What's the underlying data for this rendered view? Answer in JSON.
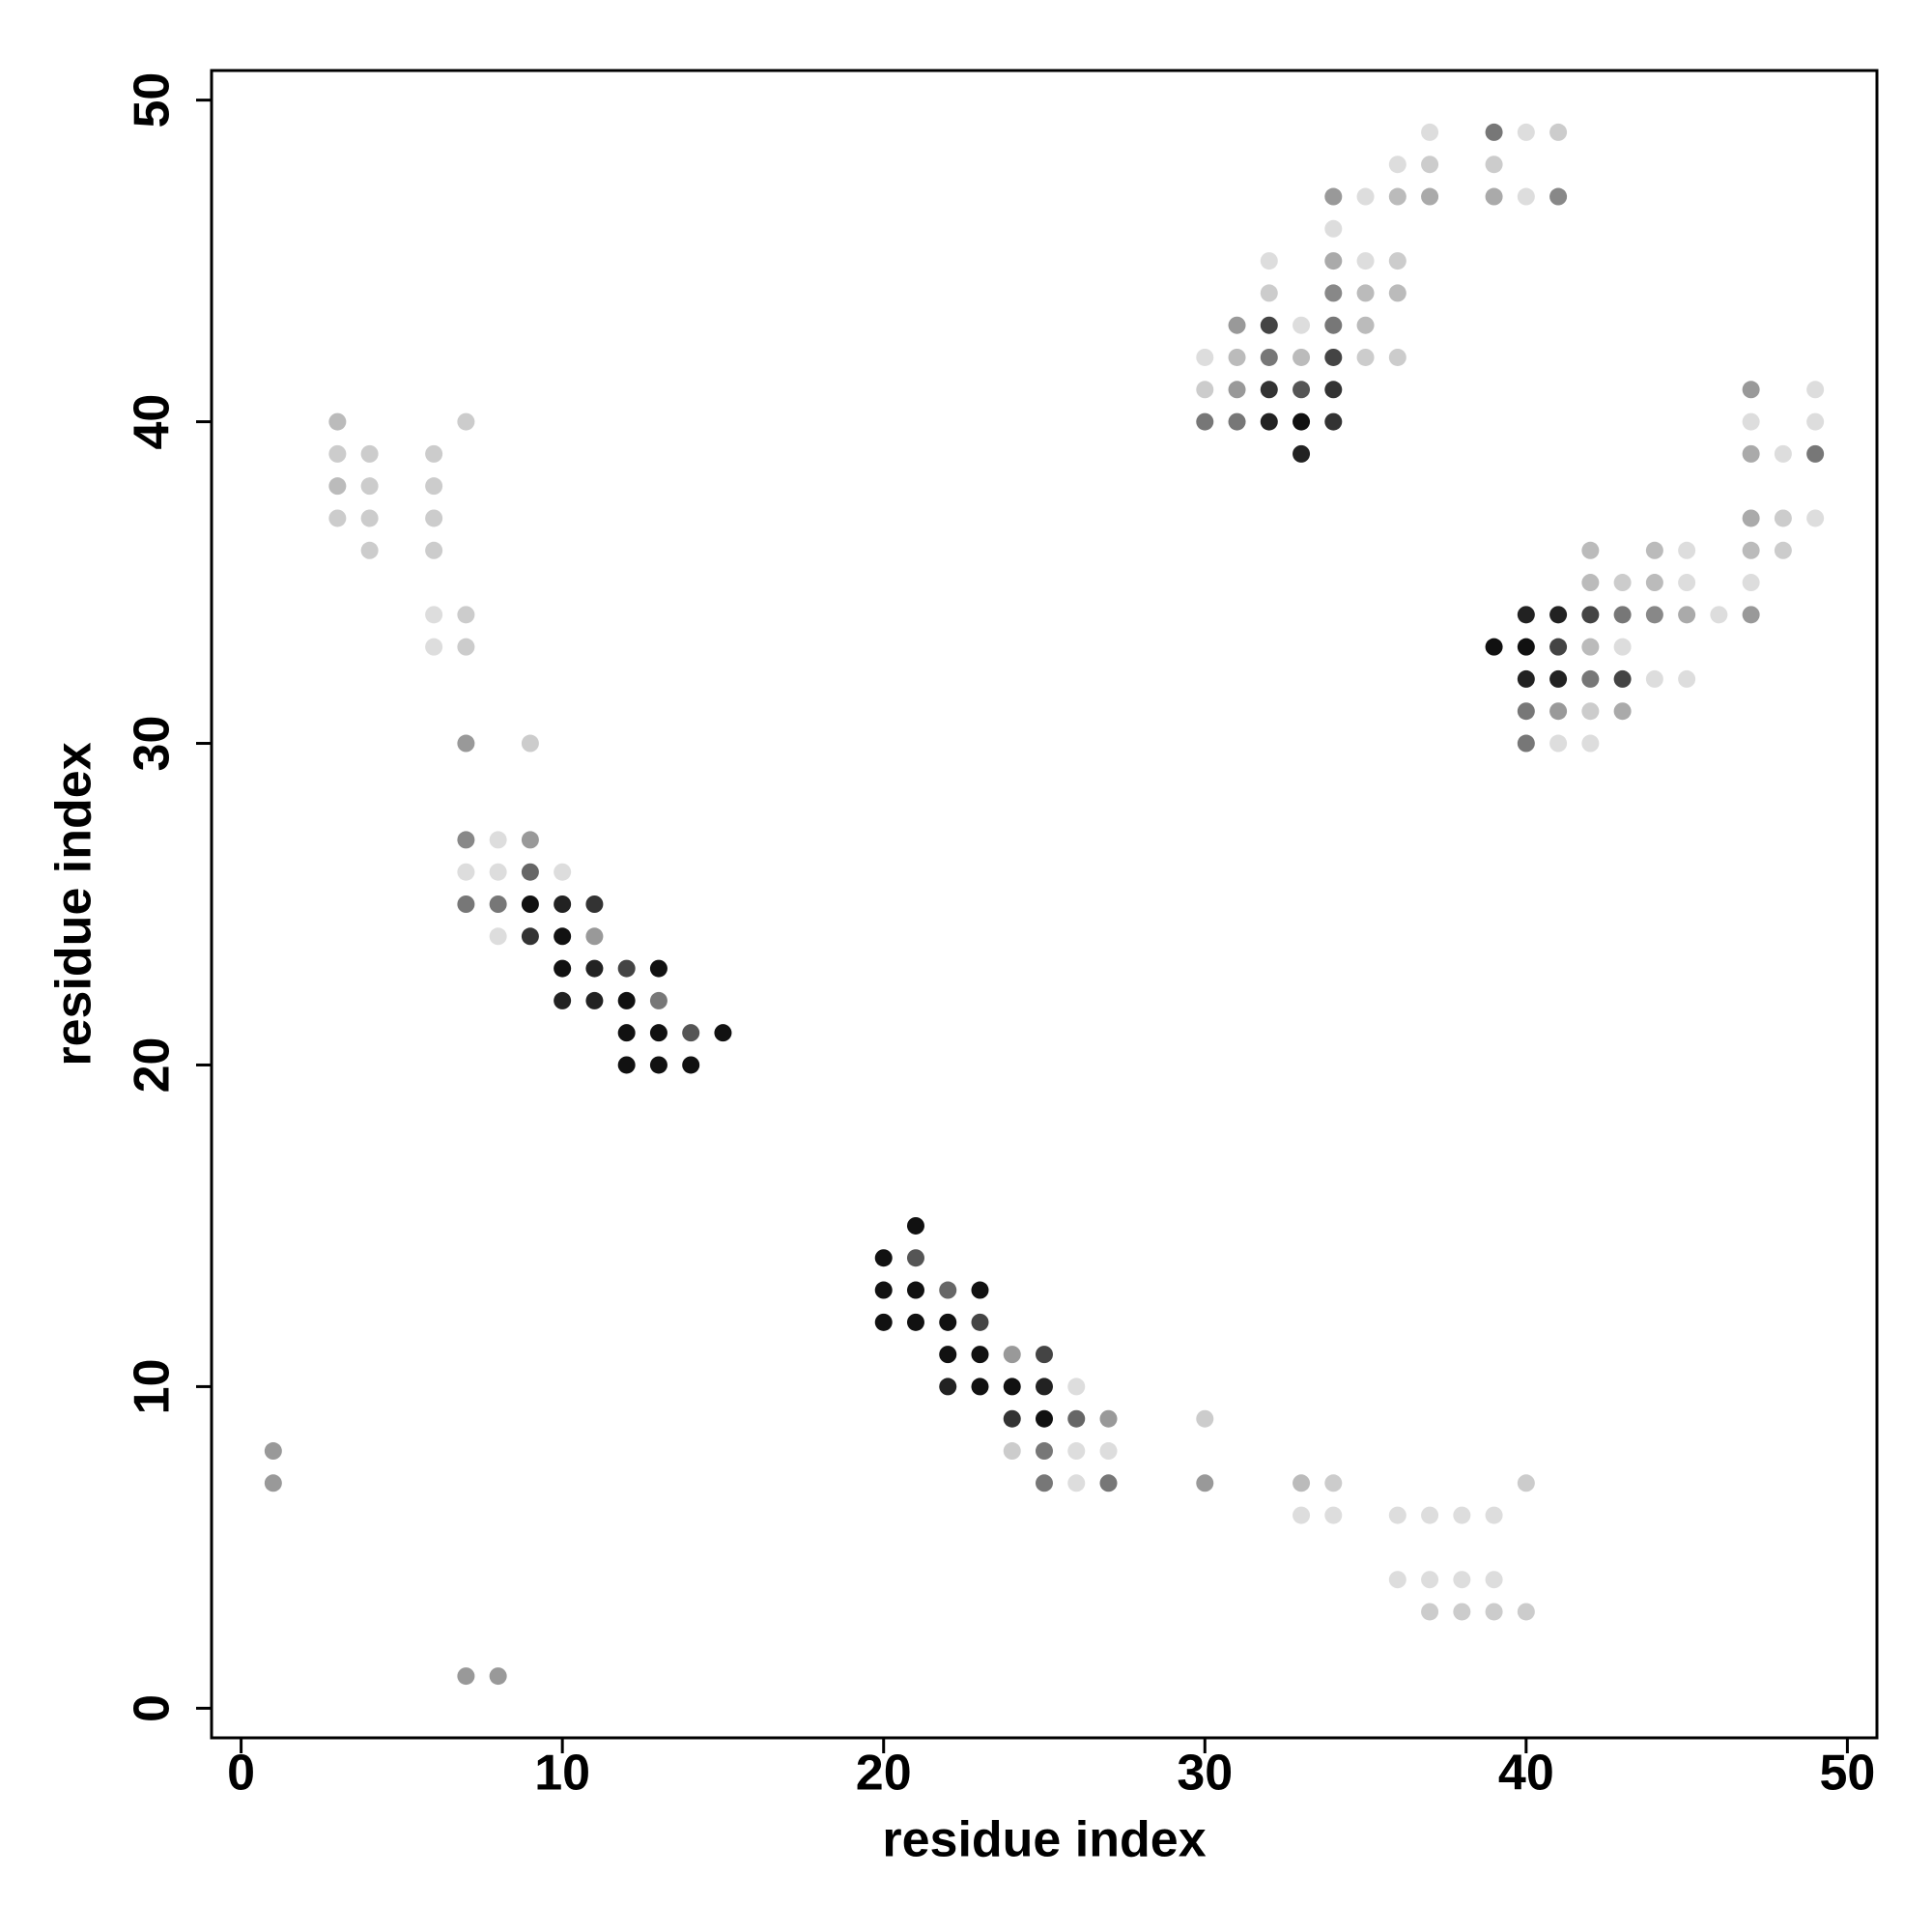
{
  "chart_data": {
    "type": "scatter",
    "x_label": "residue index",
    "y_label": "residue index",
    "xlim": [
      -0.92,
      50.92
    ],
    "ylim": [
      -0.92,
      50.92
    ],
    "xticks": [
      0,
      10,
      20,
      30,
      40,
      50
    ],
    "yticks": [
      0,
      10,
      20,
      30,
      40,
      50
    ],
    "x": [
      1,
      1,
      3,
      3,
      3,
      3,
      4,
      4,
      4,
      4,
      6,
      6,
      6,
      6,
      6,
      6,
      7,
      7,
      7,
      7,
      7,
      7,
      7,
      7,
      8,
      8,
      8,
      8,
      8,
      9,
      9,
      9,
      9,
      9,
      10,
      10,
      10,
      10,
      10,
      11,
      11,
      11,
      11,
      12,
      12,
      12,
      12,
      13,
      13,
      13,
      13,
      14,
      14,
      15,
      20,
      20,
      20,
      21,
      21,
      21,
      21,
      22,
      22,
      22,
      22,
      23,
      23,
      23,
      23,
      24,
      24,
      24,
      24,
      25,
      25,
      25,
      25,
      25,
      26,
      26,
      26,
      26,
      27,
      27,
      27,
      30,
      30,
      30,
      30,
      30,
      31,
      31,
      31,
      31,
      32,
      32,
      32,
      32,
      32,
      32,
      33,
      33,
      33,
      33,
      33,
      33,
      33,
      34,
      34,
      34,
      34,
      34,
      34,
      34,
      34,
      34,
      34,
      35,
      35,
      35,
      35,
      35,
      36,
      36,
      36,
      36,
      36,
      36,
      36,
      37,
      37,
      37,
      37,
      37,
      37,
      38,
      38,
      38,
      39,
      39,
      39,
      39,
      39,
      39,
      39,
      40,
      40,
      40,
      40,
      40,
      40,
      40,
      40,
      40,
      41,
      41,
      41,
      41,
      41,
      41,
      41,
      42,
      42,
      42,
      42,
      42,
      42,
      42,
      43,
      43,
      43,
      43,
      43,
      44,
      44,
      44,
      44,
      45,
      45,
      45,
      45,
      46,
      47,
      47,
      47,
      47,
      47,
      47,
      47,
      48,
      48,
      48,
      49,
      49,
      49,
      49
    ],
    "y": [
      8,
      7,
      40,
      39,
      38,
      37,
      39,
      38,
      37,
      36,
      39,
      38,
      37,
      36,
      34,
      33,
      40,
      34,
      33,
      30,
      27,
      26,
      25,
      1,
      27,
      26,
      25,
      24,
      1,
      30,
      27,
      26,
      25,
      24,
      26,
      25,
      24,
      23,
      22,
      25,
      24,
      23,
      22,
      23,
      22,
      21,
      20,
      23,
      22,
      21,
      20,
      21,
      20,
      21,
      14,
      13,
      12,
      15,
      14,
      13,
      12,
      13,
      12,
      11,
      10,
      13,
      12,
      11,
      10,
      11,
      10,
      9,
      8,
      11,
      10,
      9,
      8,
      7,
      10,
      9,
      8,
      7,
      9,
      8,
      7,
      42,
      41,
      40,
      9,
      7,
      43,
      42,
      41,
      40,
      45,
      44,
      43,
      42,
      41,
      40,
      43,
      42,
      41,
      40,
      39,
      7,
      6,
      47,
      46,
      45,
      44,
      43,
      42,
      41,
      40,
      7,
      6,
      47,
      45,
      44,
      43,
      42,
      48,
      47,
      45,
      44,
      42,
      6,
      4,
      49,
      48,
      47,
      6,
      4,
      3,
      6,
      4,
      3,
      49,
      48,
      47,
      33,
      6,
      4,
      3,
      49,
      47,
      34,
      33,
      32,
      31,
      30,
      7,
      3,
      49,
      47,
      34,
      33,
      32,
      31,
      30,
      36,
      35,
      34,
      33,
      32,
      31,
      30,
      35,
      34,
      33,
      32,
      31,
      36,
      35,
      34,
      32,
      36,
      35,
      34,
      32,
      34,
      41,
      40,
      39,
      37,
      36,
      35,
      34,
      39,
      37,
      36,
      41,
      40,
      39,
      37
    ],
    "colors": [
      "#999",
      "#999",
      "#bbb",
      "#ccc",
      "#bbb",
      "#ccc",
      "#ccc",
      "#ccc",
      "#ccc",
      "#ccc",
      "#ccc",
      "#ccc",
      "#ccc",
      "#ccc",
      "#ddd",
      "#ddd",
      "#ccc",
      "#ccc",
      "#ccc",
      "#999",
      "#888",
      "#ddd",
      "#777",
      "#999",
      "#ddd",
      "#ddd",
      "#777",
      "#ddd",
      "#999",
      "#ccc",
      "#999",
      "#666",
      "#111",
      "#333",
      "#ddd",
      "#222",
      "#111",
      "#111",
      "#222",
      "#333",
      "#999",
      "#222",
      "#222",
      "#444",
      "#111",
      "#111",
      "#111",
      "#111",
      "#777",
      "#111",
      "#111",
      "#555",
      "#111",
      "#111",
      "#111",
      "#111",
      "#111",
      "#111",
      "#555",
      "#111",
      "#111",
      "#666",
      "#111",
      "#111",
      "#222",
      "#111",
      "#444",
      "#111",
      "#111",
      "#999",
      "#111",
      "#333",
      "#ccc",
      "#444",
      "#222",
      "#111",
      "#777",
      "#777",
      "#ddd",
      "#666",
      "#ddd",
      "#ddd",
      "#999",
      "#ddd",
      "#777",
      "#ddd",
      "#ccc",
      "#777",
      "#ccc",
      "#999",
      "#999",
      "#bbb",
      "#999",
      "#777",
      "#ddd",
      "#ccc",
      "#444",
      "#777",
      "#333",
      "#222",
      "#ddd",
      "#bbb",
      "#555",
      "#111",
      "#222",
      "#bbb",
      "#ddd",
      "#999",
      "#ddd",
      "#aaa",
      "#888",
      "#777",
      "#444",
      "#333",
      "#333",
      "#ccc",
      "#ddd",
      "#ddd",
      "#ddd",
      "#bbb",
      "#bbb",
      "#ccc",
      "#ddd",
      "#bbb",
      "#ccc",
      "#bbb",
      "#ccc",
      "#ddd",
      "#ddd",
      "#ddd",
      "#ccc",
      "#aaa",
      "#ddd",
      "#ddd",
      "#ccc",
      "#ddd",
      "#ddd",
      "#ccc",
      "#777",
      "#ccc",
      "#aaa",
      "#111",
      "#ddd",
      "#ddd",
      "#ccc",
      "#ddd",
      "#ddd",
      "#222",
      "#111",
      "#222",
      "#777",
      "#777",
      "#ccc",
      "#ccc",
      "#ccc",
      "#888",
      "#222",
      "#444",
      "#222",
      "#999",
      "#ddd",
      "#bbb",
      "#bbb",
      "#444",
      "#bbb",
      "#777",
      "#ccc",
      "#ddd",
      "#ccc",
      "#777",
      "#ddd",
      "#444",
      "#aaa",
      "#bbb",
      "#bbb",
      "#888",
      "#ddd",
      "#ddd",
      "#ddd",
      "#aaa",
      "#ddd",
      "#ddd",
      "#999",
      "#ddd",
      "#aaa",
      "#aaa",
      "#bbb",
      "#ddd",
      "#999",
      "#ddd",
      "#ccc",
      "#ccc",
      "#ddd",
      "#ddd",
      "#777",
      "#ddd"
    ]
  }
}
